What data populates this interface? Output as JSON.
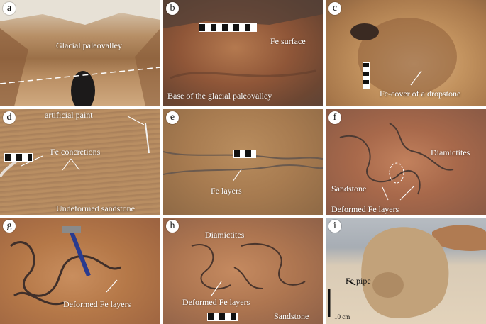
{
  "figure": {
    "panels": [
      {
        "letter": "a",
        "labels": [
          "Glacial paleovalley"
        ]
      },
      {
        "letter": "b",
        "labels": [
          "Fe surface",
          "Base of the glacial paleovalley"
        ]
      },
      {
        "letter": "c",
        "labels": [
          "Fe-cover of a dropstone"
        ]
      },
      {
        "letter": "d",
        "labels": [
          "artificial paint",
          "Fe concretions",
          "Undeformed sandstone"
        ]
      },
      {
        "letter": "e",
        "labels": [
          "Fe layers"
        ]
      },
      {
        "letter": "f",
        "labels": [
          "Diamictites",
          "Sandstone",
          "Deformed Fe layers"
        ]
      },
      {
        "letter": "g",
        "labels": [
          "Deformed Fe layers"
        ]
      },
      {
        "letter": "h",
        "labels": [
          "Diamictites",
          "Deformed Fe layers",
          "Sandstone"
        ]
      },
      {
        "letter": "i",
        "labels": [
          "Fe pipe",
          "10 cm"
        ]
      }
    ]
  },
  "colors": {
    "label_text": "#ffffff",
    "scale_text": "#111111",
    "panel_letter_bg": "#ffffff"
  }
}
